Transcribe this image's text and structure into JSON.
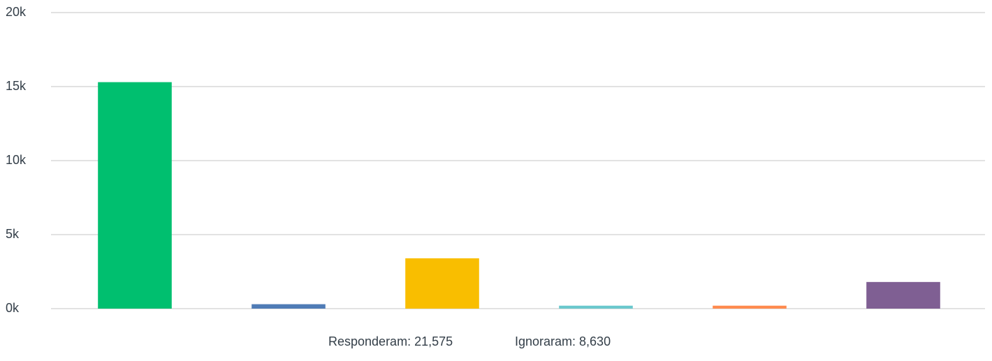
{
  "chart_data": {
    "type": "bar",
    "categories": [
      null,
      null,
      null,
      null,
      null,
      null
    ],
    "values": [
      15300,
      300,
      3400,
      200,
      200,
      1800
    ],
    "colors": [
      "#00bf6f",
      "#507cb6",
      "#f9be00",
      "#6bc8cd",
      "#ff8b4f",
      "#7f5f93"
    ],
    "ylim": [
      0,
      20000
    ],
    "yticks": [
      {
        "value": 0,
        "label": "0k"
      },
      {
        "value": 5000,
        "label": "5k"
      },
      {
        "value": 10000,
        "label": "10k"
      },
      {
        "value": 15000,
        "label": "15k"
      },
      {
        "value": 20000,
        "label": "20k"
      }
    ],
    "grid": true,
    "annotations": [
      "Responderam: 21,575",
      "Ignoraram: 8,630"
    ]
  }
}
